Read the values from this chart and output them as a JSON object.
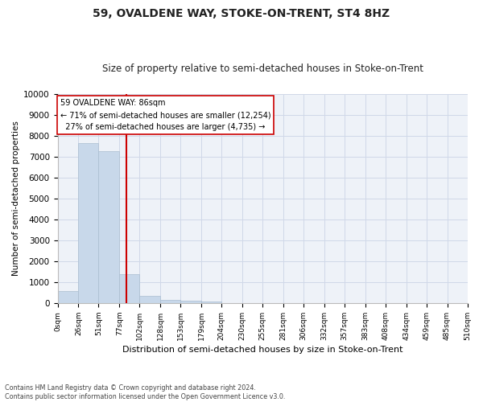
{
  "title": "59, OVALDENE WAY, STOKE-ON-TRENT, ST4 8HZ",
  "subtitle": "Size of property relative to semi-detached houses in Stoke-on-Trent",
  "xlabel": "Distribution of semi-detached houses by size in Stoke-on-Trent",
  "ylabel": "Number of semi-detached properties",
  "footnote": "Contains HM Land Registry data © Crown copyright and database right 2024.\nContains public sector information licensed under the Open Government Licence v3.0.",
  "bin_edges": [
    0,
    26,
    51,
    77,
    102,
    128,
    153,
    179,
    204,
    230,
    255,
    281,
    306,
    332,
    357,
    383,
    408,
    434,
    459,
    485,
    510
  ],
  "bar_values": [
    570,
    7650,
    7270,
    1370,
    330,
    170,
    110,
    90,
    0,
    0,
    0,
    0,
    0,
    0,
    0,
    0,
    0,
    0,
    0,
    0
  ],
  "bar_color": "#c8d8ea",
  "bar_edgecolor": "#aabdd0",
  "property_label": "59 OVALDENE WAY: 86sqm",
  "pct_smaller": 71,
  "pct_larger": 27,
  "count_smaller": 12254,
  "count_larger": 4735,
  "vline_x": 86,
  "ylim": [
    0,
    10000
  ],
  "yticks": [
    0,
    1000,
    2000,
    3000,
    4000,
    5000,
    6000,
    7000,
    8000,
    9000,
    10000
  ],
  "annotation_box_color": "#ffffff",
  "annotation_box_edgecolor": "#cc0000",
  "vline_color": "#cc0000",
  "grid_color": "#d0d8e8",
  "bg_color": "#eef2f8"
}
